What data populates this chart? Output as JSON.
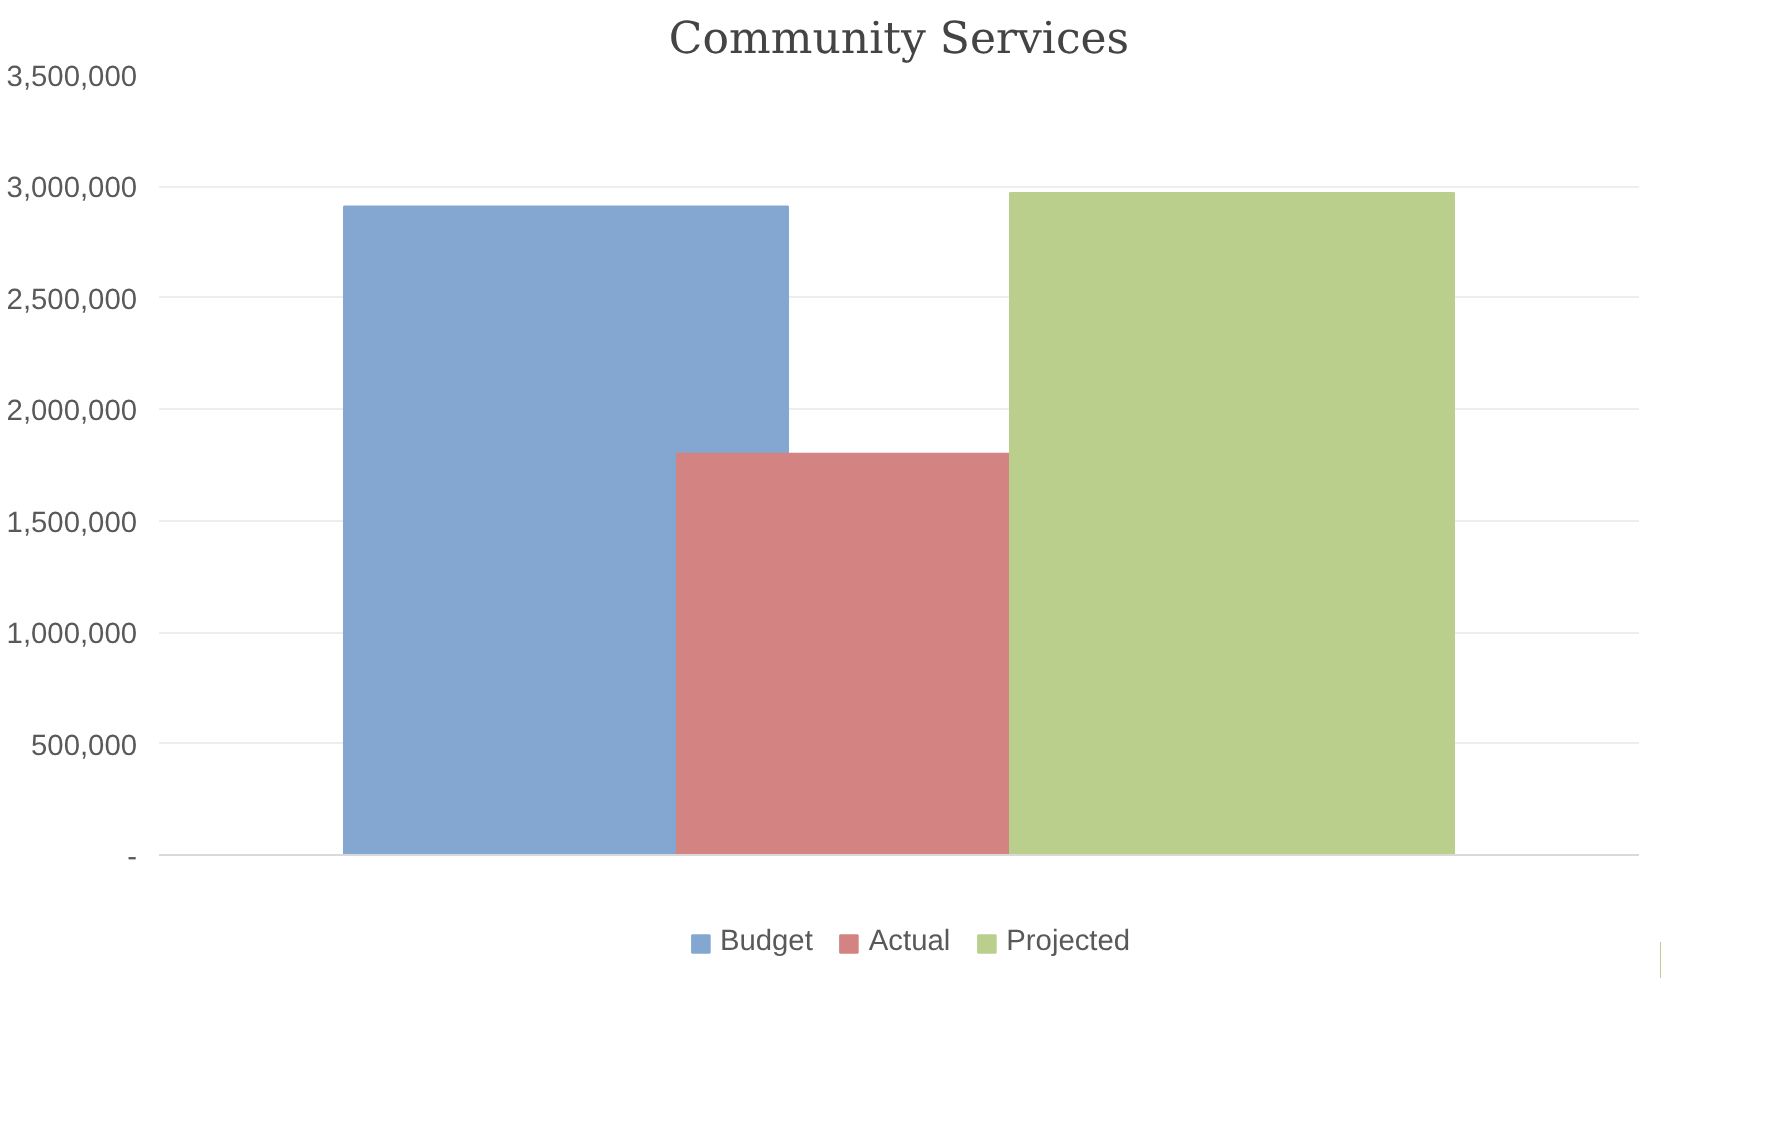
{
  "chart_data": {
    "type": "bar",
    "title": "Community Services",
    "categories": [
      null
    ],
    "series": [
      {
        "name": "Budget",
        "color": "#84a7d1",
        "values": [
          2910000
        ]
      },
      {
        "name": "Actual",
        "color": "#d38482",
        "values": [
          1800000
        ]
      },
      {
        "name": "Projected",
        "color": "#b9cf8b",
        "values": [
          2970000
        ]
      }
    ],
    "ylim": [
      0,
      3500000
    ],
    "yticks": [
      {
        "value": 0,
        "label": "-"
      },
      {
        "value": 500000,
        "label": "500,000"
      },
      {
        "value": 1000000,
        "label": "1,000,000"
      },
      {
        "value": 1500000,
        "label": "1,500,000"
      },
      {
        "value": 2000000,
        "label": "2,000,000"
      },
      {
        "value": 2500000,
        "label": "2,500,000"
      },
      {
        "value": 3000000,
        "label": "3,000,000"
      },
      {
        "value": 3500000,
        "label": "3,500,000"
      }
    ],
    "grid": "y",
    "legend": "bottom"
  }
}
